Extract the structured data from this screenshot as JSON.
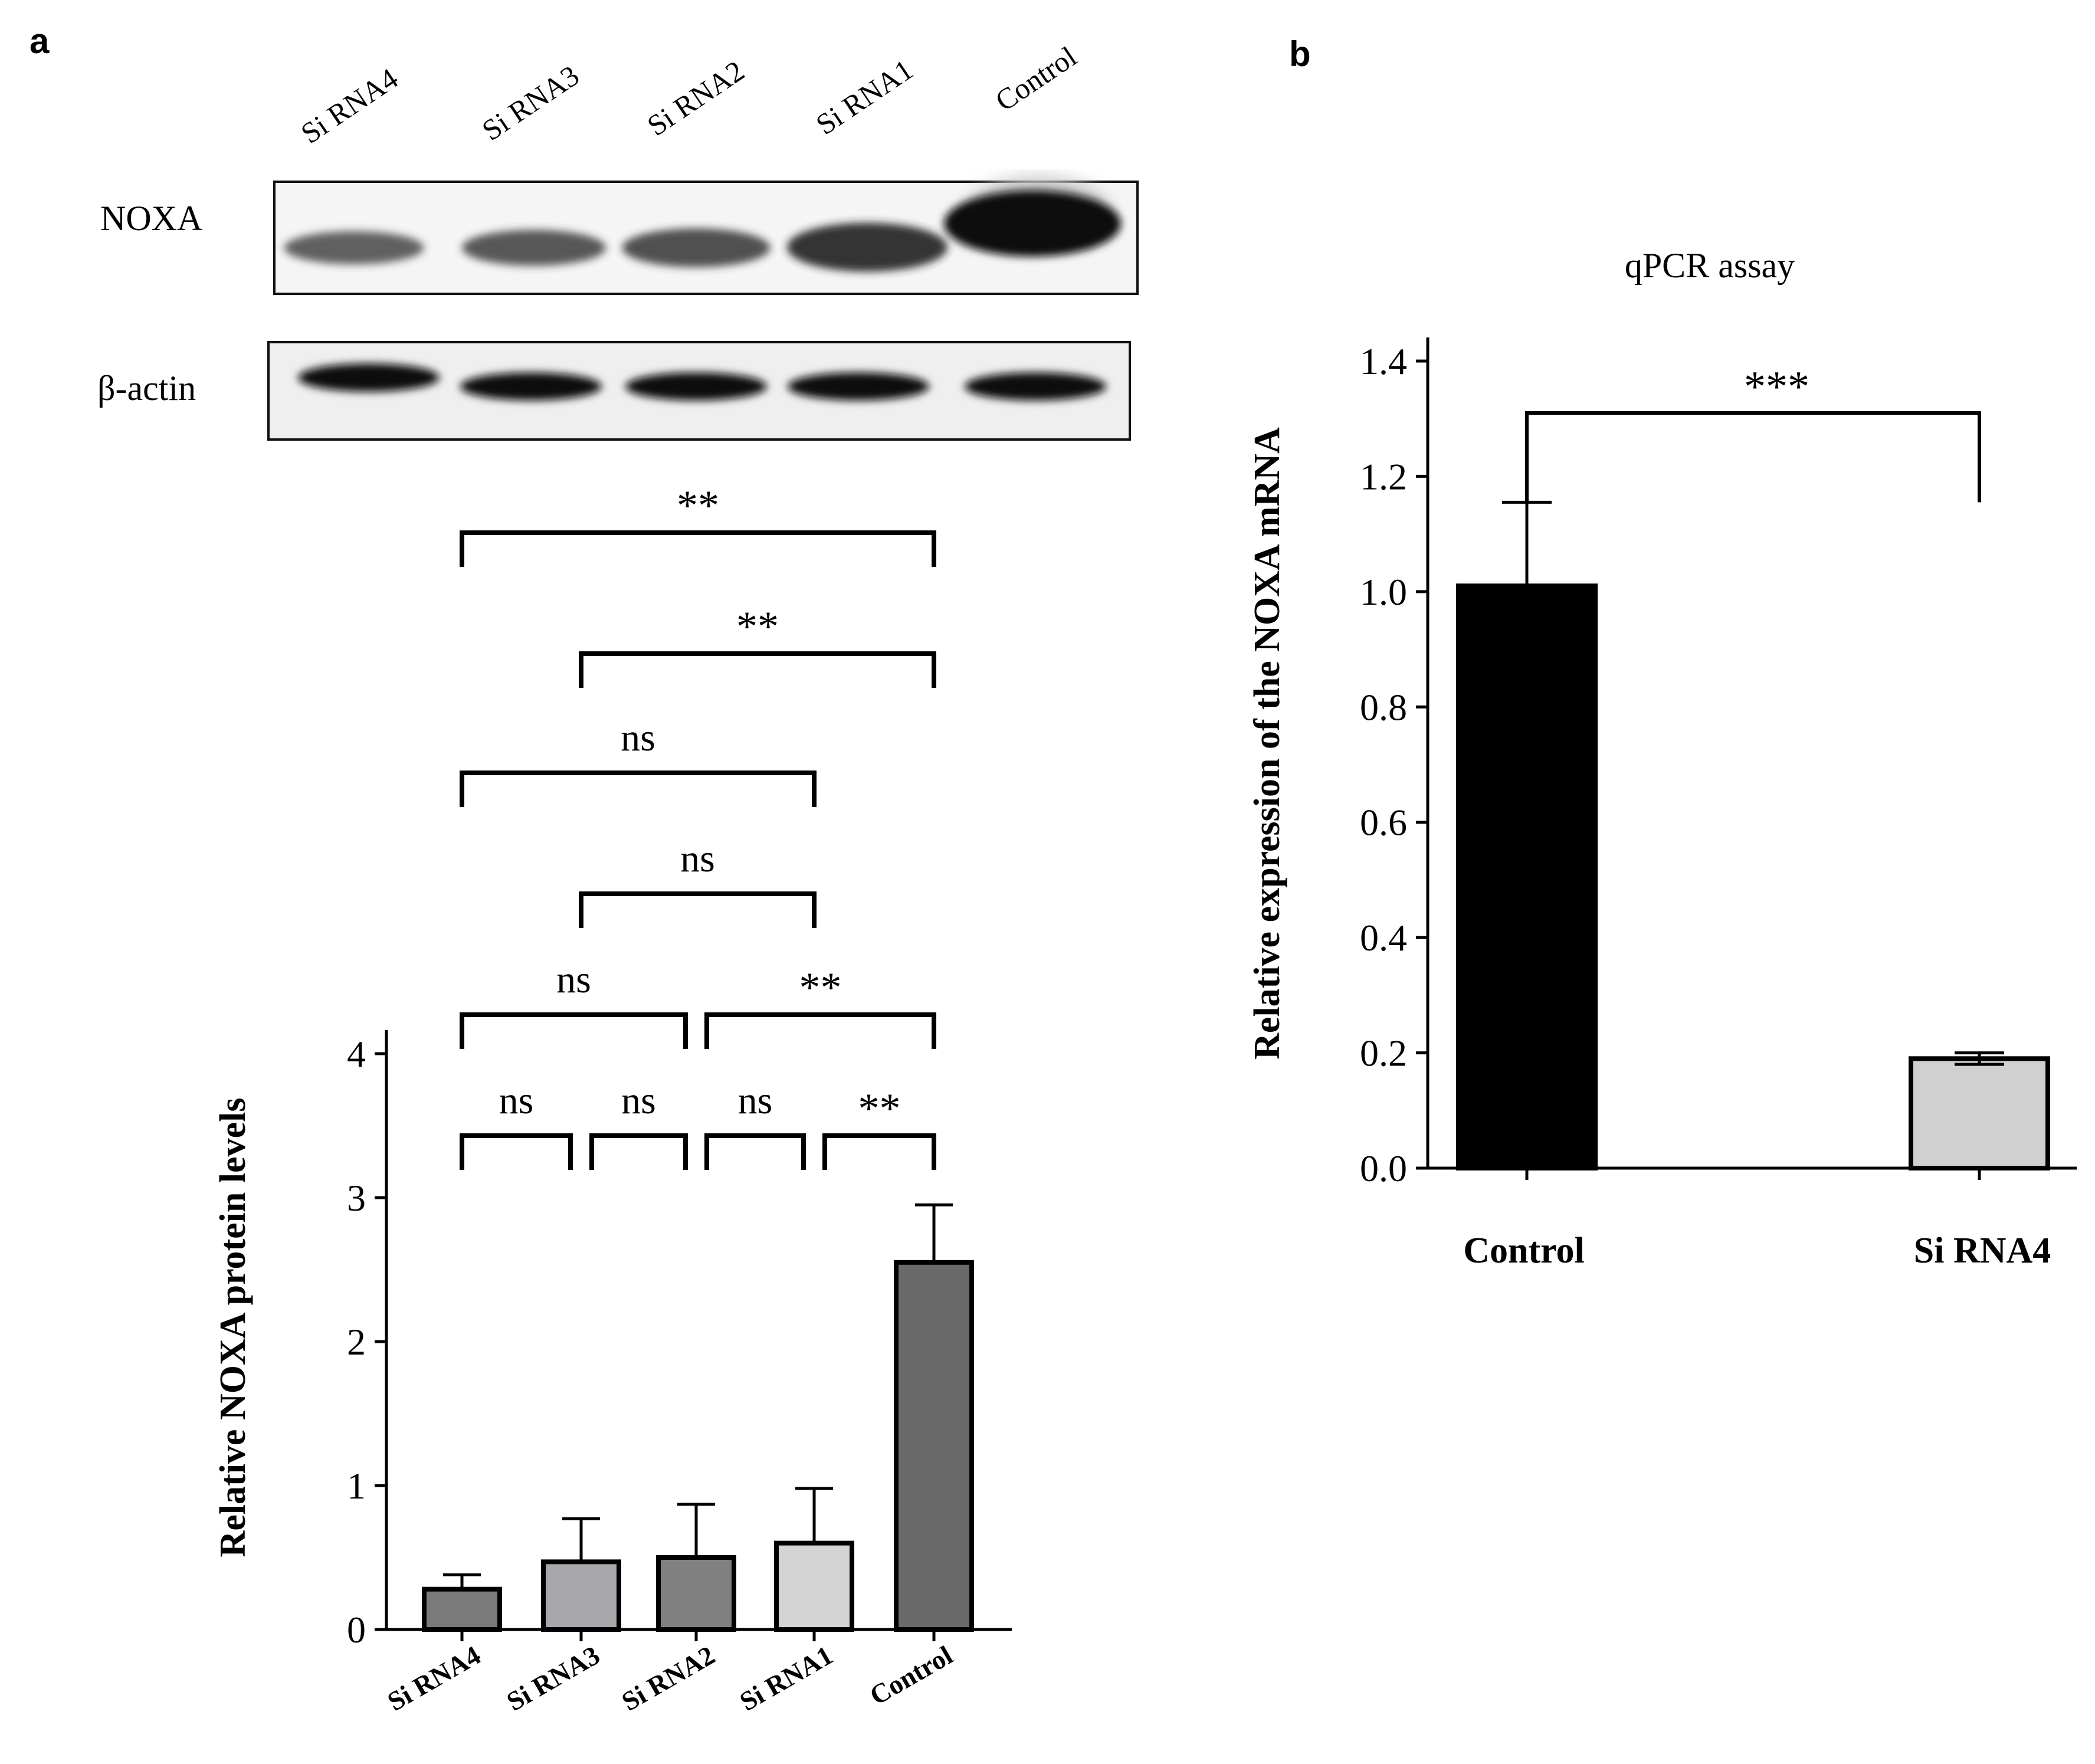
{
  "panels": {
    "a": {
      "letter": "a"
    },
    "b": {
      "letter": "b"
    }
  },
  "blot": {
    "lanes": [
      "Si RNA4",
      "Si RNA3",
      "Si RNA2",
      "Si RNA1",
      "Control"
    ],
    "rows": [
      {
        "label": "NOXA",
        "intensity": [
          0.55,
          0.6,
          0.65,
          0.8,
          1.0
        ]
      },
      {
        "label": "β-actin",
        "intensity": [
          1.0,
          0.92,
          0.95,
          0.95,
          0.95
        ]
      }
    ]
  },
  "chart_data": [
    {
      "panel": "a",
      "type": "bar",
      "title": "",
      "xlabel": "",
      "ylabel": "Relative NOXA protein levels",
      "ylim": [
        0,
        4
      ],
      "yticks": [
        "0",
        "1",
        "2",
        "3",
        "4"
      ],
      "categories": [
        "Si RNA4",
        "Si RNA3",
        "Si RNA2",
        "Si RNA1",
        "Control"
      ],
      "values": [
        0.28,
        0.47,
        0.5,
        0.6,
        2.55
      ],
      "errors": [
        0.1,
        0.3,
        0.37,
        0.38,
        0.4
      ],
      "colors": [
        "#7a7a7a",
        "#a8a8ac",
        "#808080",
        "#d4d4d4",
        "#6a6a6a"
      ],
      "significance": [
        {
          "from": 0,
          "to": 1,
          "label": "ns",
          "level": 0
        },
        {
          "from": 1,
          "to": 2,
          "label": "ns",
          "level": 0
        },
        {
          "from": 2,
          "to": 3,
          "label": "ns",
          "level": 0
        },
        {
          "from": 3,
          "to": 4,
          "label": "**",
          "level": 0
        },
        {
          "from": 0,
          "to": 2,
          "label": "ns",
          "level": 1
        },
        {
          "from": 2,
          "to": 4,
          "label": "**",
          "level": 1
        },
        {
          "from": 1,
          "to": 3,
          "label": "ns",
          "level": 2
        },
        {
          "from": 0,
          "to": 3,
          "label": "ns",
          "level": 3
        },
        {
          "from": 1,
          "to": 4,
          "label": "**",
          "level": 4
        },
        {
          "from": 0,
          "to": 4,
          "label": "**",
          "level": 5
        }
      ]
    },
    {
      "panel": "b",
      "type": "bar",
      "title": "qPCR assay",
      "xlabel": "",
      "ylabel": "Relative  expression of the NOXA mRNA",
      "ylim": [
        0,
        1.4
      ],
      "yticks": [
        "0.0",
        "0.2",
        "0.4",
        "0.6",
        "0.8",
        "1.0",
        "1.2",
        "1.4"
      ],
      "categories": [
        "Control",
        "Si RNA4"
      ],
      "values": [
        1.01,
        0.19
      ],
      "errors": [
        0.145,
        0.01
      ],
      "colors": [
        "#000000",
        "#d0d0d0"
      ],
      "significance": [
        {
          "from": 0,
          "to": 1,
          "label": "***"
        }
      ]
    }
  ]
}
